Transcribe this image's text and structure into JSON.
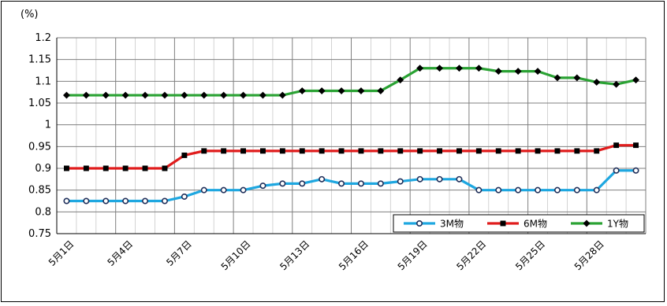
{
  "chart_data": {
    "type": "line",
    "y_unit_label": "(%)",
    "ylim": [
      0.75,
      1.2
    ],
    "y_ticks": [
      "0.75",
      "0.8",
      "0.85",
      "0.9",
      "0.95",
      "1",
      "1.05",
      "1.1",
      "1.15",
      "1.2"
    ],
    "x_tick_labels": [
      "5月1日",
      "5月4日",
      "5月7日",
      "5月10日",
      "5月13日",
      "5月16日",
      "5月19日",
      "5月22日",
      "5月25日",
      "5月28日"
    ],
    "point_count": 30,
    "grid": true,
    "legend_position": "bottom-right",
    "series": [
      {
        "name": "3M物",
        "color": "#1ea7e0",
        "marker": "circle",
        "values": [
          0.825,
          0.825,
          0.825,
          0.825,
          0.825,
          0.825,
          0.835,
          0.85,
          0.85,
          0.85,
          0.86,
          0.865,
          0.865,
          0.875,
          0.865,
          0.865,
          0.865,
          0.87,
          0.875,
          0.875,
          0.875,
          0.85,
          0.85,
          0.85,
          0.85,
          0.85,
          0.85,
          0.85,
          0.895,
          0.895
        ]
      },
      {
        "name": "6M物",
        "color": "#e01c1c",
        "marker": "square",
        "values": [
          0.9,
          0.9,
          0.9,
          0.9,
          0.9,
          0.9,
          0.93,
          0.94,
          0.94,
          0.94,
          0.94,
          0.94,
          0.94,
          0.94,
          0.94,
          0.94,
          0.94,
          0.94,
          0.94,
          0.94,
          0.94,
          0.94,
          0.94,
          0.94,
          0.94,
          0.94,
          0.94,
          0.94,
          0.953,
          0.953
        ]
      },
      {
        "name": "1Y物",
        "color": "#2aa233",
        "marker": "diamond",
        "values": [
          1.068,
          1.068,
          1.068,
          1.068,
          1.068,
          1.068,
          1.068,
          1.068,
          1.068,
          1.068,
          1.068,
          1.068,
          1.078,
          1.078,
          1.078,
          1.078,
          1.078,
          1.103,
          1.13,
          1.13,
          1.13,
          1.13,
          1.123,
          1.123,
          1.123,
          1.108,
          1.108,
          1.098,
          1.093,
          1.103
        ]
      }
    ]
  }
}
